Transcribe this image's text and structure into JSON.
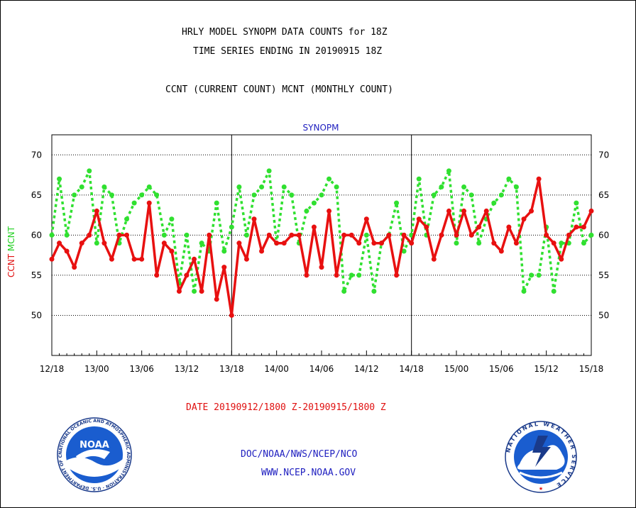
{
  "header": {
    "title_line1": "HRLY MODEL SYNOPM DATA COUNTS for 18Z",
    "title_line2": "TIME SERIES ENDING IN 20190915 18Z",
    "subtitle": "CCNT (CURRENT COUNT) MCNT (MONTHLY COUNT)"
  },
  "footer": {
    "date_range": "DATE 20190912/1800 Z-20190915/1800 Z",
    "org": "DOC/NOAA/NWS/NCEP/NCO",
    "url": "WWW.NCEP.NOAA.GOV",
    "noaa_logo_text": "NOAA",
    "noaa_ring_text": "NATIONAL OCEANIC AND ATMOSPHERIC ADMINISTRATION · U.S. DEPARTMENT OF COMMERCE",
    "nws_ring_text": "NATIONAL WEATHER SERVICE"
  },
  "colors": {
    "ccnt": "#e81010",
    "mcnt": "#30e030",
    "panel_title": "#2020c0",
    "ylabel_mcnt": "#20d020",
    "ylabel_ccnt": "#e01010"
  },
  "chart_data": {
    "type": "line",
    "title": "SYNOPM",
    "xlabel": "",
    "ylabel_parts": [
      "CCNT",
      "MCNT"
    ],
    "ylim": [
      45,
      72.5
    ],
    "yticks": [
      50,
      55,
      60,
      65,
      70
    ],
    "grid": "horizontal dotted at y ticks",
    "x_ticks": [
      "12/18",
      "13/00",
      "13/06",
      "13/12",
      "13/18",
      "14/00",
      "14/06",
      "14/12",
      "14/18",
      "15/00",
      "15/06",
      "15/12",
      "15/18"
    ],
    "x_unit": "hours from 12/18",
    "x_range": [
      0,
      72
    ],
    "day_dividers": [
      24,
      48
    ],
    "series": [
      {
        "name": "CCNT",
        "style": "solid",
        "x": [
          0,
          1,
          2,
          3,
          4,
          5,
          6,
          7,
          8,
          9,
          10,
          11,
          12,
          13,
          14,
          15,
          16,
          17,
          18,
          19,
          20,
          21,
          22,
          23,
          24,
          25,
          26,
          27,
          28,
          29,
          30,
          31,
          32,
          33,
          34,
          35,
          36,
          37,
          38,
          39,
          40,
          41,
          42,
          43,
          44,
          45,
          46,
          47,
          48,
          49,
          50,
          51,
          52,
          53,
          54,
          55,
          56,
          57,
          58,
          59,
          60,
          61,
          62,
          63,
          64,
          65,
          66,
          67,
          68,
          69,
          70,
          71,
          72
        ],
        "values": [
          57,
          59,
          58,
          56,
          59,
          60,
          63,
          59,
          57,
          60,
          60,
          57,
          57,
          64,
          55,
          59,
          58,
          53,
          55,
          57,
          53,
          60,
          52,
          56,
          50,
          59,
          57,
          62,
          58,
          60,
          59,
          59,
          60,
          60,
          55,
          61,
          56,
          63,
          55,
          60,
          60,
          59,
          62,
          59,
          59,
          60,
          55,
          60,
          59,
          62,
          61,
          57,
          60,
          63,
          60,
          63,
          60,
          61,
          63,
          59,
          58,
          61,
          59,
          62,
          63,
          67,
          60,
          59,
          57,
          60,
          61,
          61,
          63
        ]
      },
      {
        "name": "MCNT",
        "style": "dotted",
        "x": [
          0,
          1,
          2,
          3,
          4,
          5,
          6,
          7,
          8,
          9,
          10,
          11,
          12,
          13,
          14,
          15,
          16,
          17,
          18,
          19,
          20,
          21,
          22,
          23,
          24,
          25,
          26,
          27,
          28,
          29,
          30,
          31,
          32,
          33,
          34,
          35,
          36,
          37,
          38,
          39,
          40,
          41,
          42,
          43,
          44,
          45,
          46,
          47,
          48,
          49,
          50,
          51,
          52,
          53,
          54,
          55,
          56,
          57,
          58,
          59,
          60,
          61,
          62,
          63,
          64,
          65,
          66,
          67,
          68,
          69,
          70,
          71,
          72
        ],
        "values": [
          60,
          67,
          60,
          65,
          66,
          68,
          59,
          66,
          65,
          59,
          62,
          64,
          65,
          66,
          65,
          60,
          62,
          54,
          60,
          53,
          59,
          58,
          64,
          58,
          61,
          66,
          60,
          65,
          66,
          68,
          59,
          66,
          65,
          59,
          63,
          64,
          65,
          67,
          66,
          53,
          55,
          55,
          60,
          53,
          59,
          60,
          64,
          58,
          60,
          67,
          60,
          65,
          66,
          68,
          59,
          66,
          65,
          59,
          62,
          64,
          65,
          67,
          66,
          53,
          55,
          55,
          61,
          53,
          59,
          59,
          64,
          59,
          60
        ]
      }
    ]
  }
}
